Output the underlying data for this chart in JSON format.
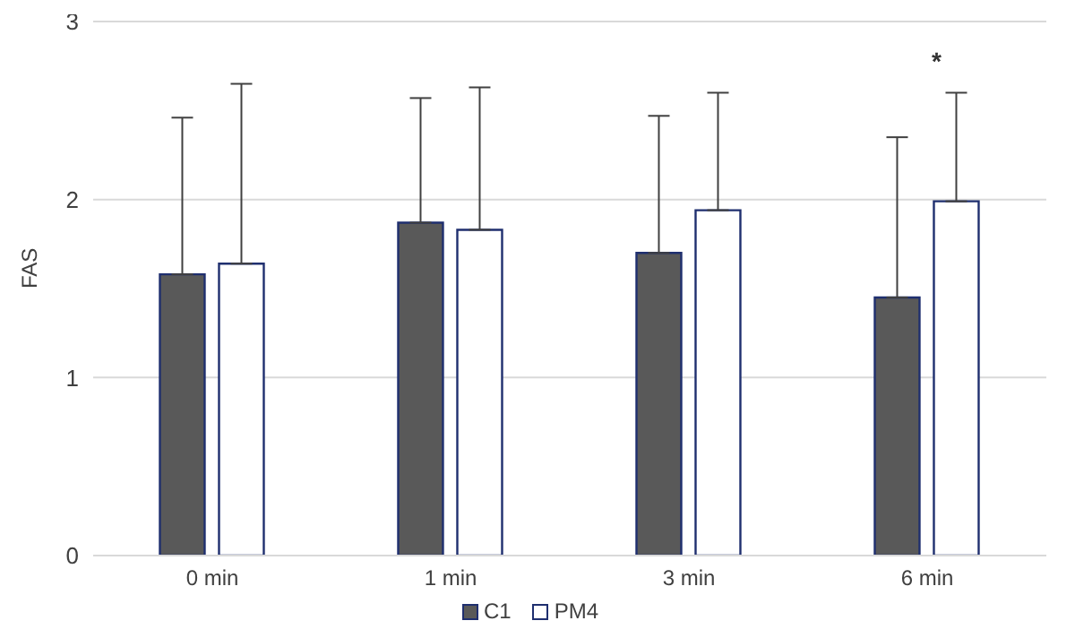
{
  "chart_data": {
    "type": "bar",
    "ylabel": "FAS",
    "categories": [
      "0 min",
      "1 min",
      "3 min",
      "6 min"
    ],
    "series": [
      {
        "name": "C1",
        "color": "#595959",
        "values": [
          1.58,
          1.87,
          1.7,
          1.45
        ],
        "errors": [
          [
            1.58,
            2.46
          ],
          [
            1.87,
            2.57
          ],
          [
            1.7,
            2.47
          ],
          [
            1.45,
            2.35
          ]
        ]
      },
      {
        "name": "PM4",
        "color": "#ffffff",
        "values": [
          1.64,
          1.83,
          1.94,
          1.99
        ],
        "errors": [
          [
            1.64,
            2.65
          ],
          [
            1.83,
            2.63
          ],
          [
            1.94,
            2.6
          ],
          [
            1.99,
            2.6
          ]
        ]
      }
    ],
    "ylim": [
      0,
      3
    ],
    "yticks": [
      0,
      1,
      2,
      3
    ],
    "grid": "y",
    "legend": "bottom",
    "annotations": [
      "*"
    ]
  }
}
